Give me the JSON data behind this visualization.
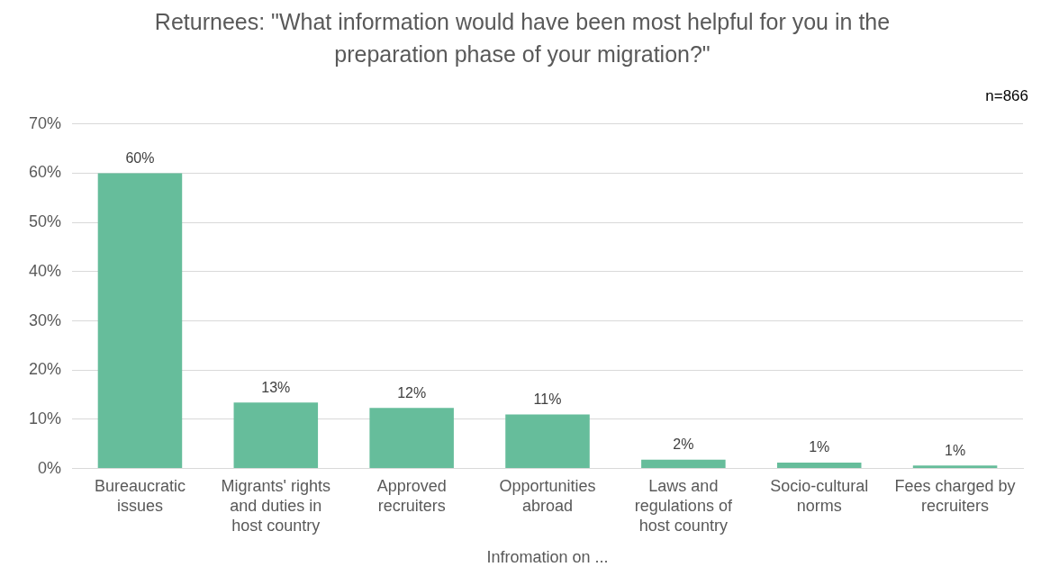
{
  "chart_data": {
    "type": "bar",
    "title": "Returnees: \"What information would have been most helpful for you in the preparation phase of your migration?\"",
    "xlabel": "Infromation on ...",
    "annotations": [
      "n=866"
    ],
    "categories": [
      "Bureaucratic issues",
      "Migrants' rights and duties in host country",
      "Approved recruiters",
      "Opportunities abroad",
      "Laws and regulations of host country",
      "Socio-cultural norms",
      "Fees charged by recruiters"
    ],
    "values": [
      60,
      13.4,
      12.3,
      11,
      1.8,
      1.2,
      0.6
    ],
    "value_labels": [
      "60%",
      "13%",
      "12%",
      "11%",
      "2%",
      "1%",
      "1%"
    ],
    "color": "#66bd9b",
    "ylim": [
      0,
      70
    ],
    "yticks": [
      {
        "value": 0,
        "label": "0%"
      },
      {
        "value": 10,
        "label": "10%"
      },
      {
        "value": 20,
        "label": "20%"
      },
      {
        "value": 30,
        "label": "30%"
      },
      {
        "value": 40,
        "label": "40%"
      },
      {
        "value": 50,
        "label": "50%"
      },
      {
        "value": 60,
        "label": "60%"
      },
      {
        "value": 70,
        "label": "70%"
      }
    ],
    "grid": "y",
    "legend": false
  }
}
